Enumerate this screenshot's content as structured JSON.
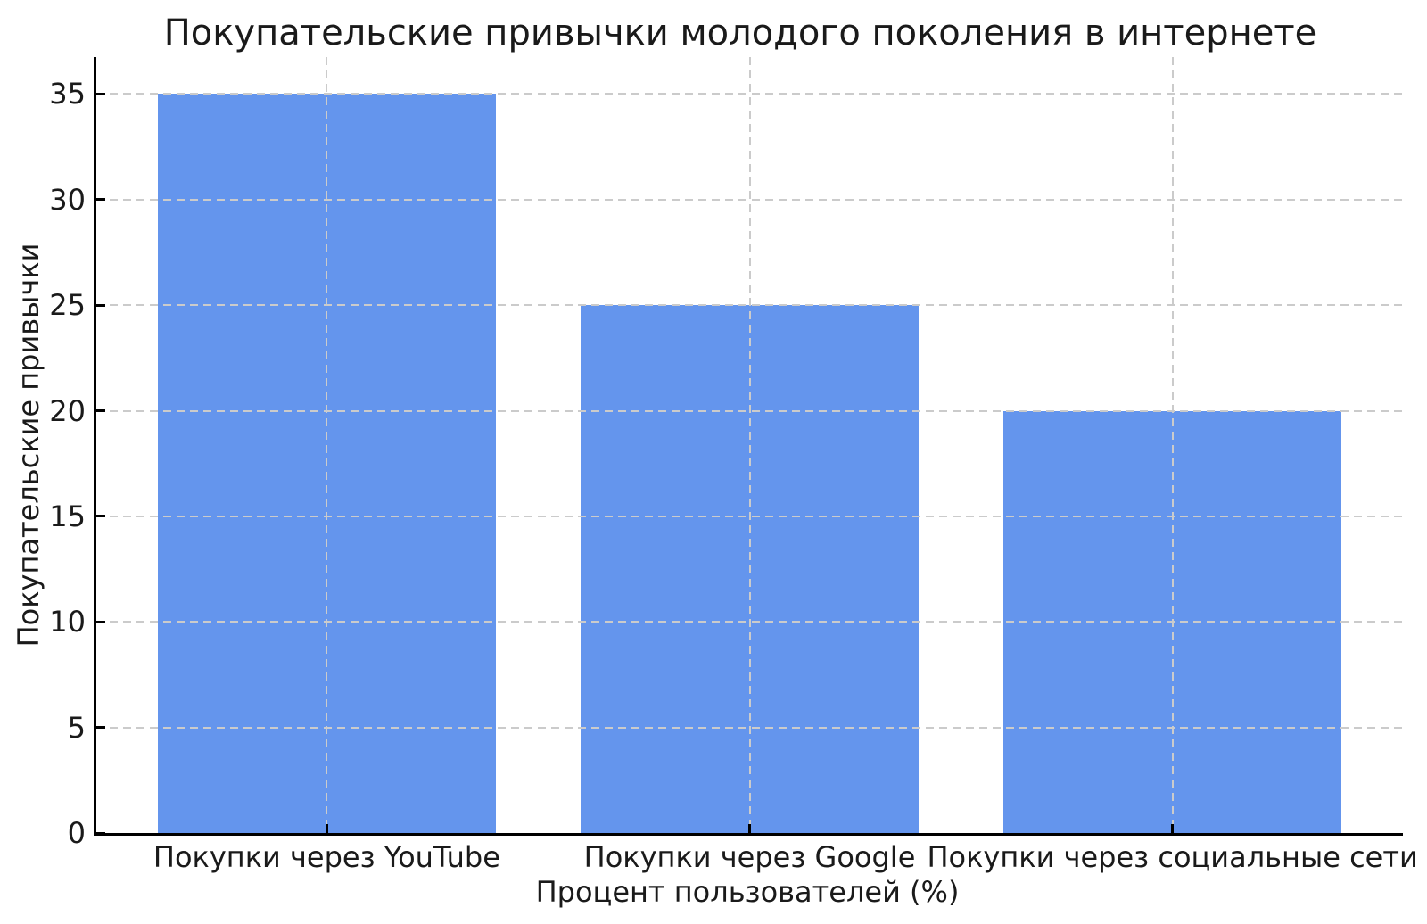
{
  "chart_data": {
    "type": "bar",
    "title": "Покупательские привычки молодого поколения в интернете",
    "xlabel": "Процент пользователей (%)",
    "ylabel": "Покупательские привычки",
    "categories": [
      "Покупки через YouTube",
      "Покупки через Google",
      "Покупки через социальные сети"
    ],
    "values": [
      35,
      25,
      20
    ],
    "yticks": [
      0,
      5,
      10,
      15,
      20,
      25,
      30,
      35
    ],
    "ylim": [
      0,
      36.75
    ],
    "bar_width_fraction": 0.8,
    "grid": true,
    "legend": "none",
    "bar_color": "#6495ED",
    "grid_color": "#cbcbcb",
    "axis_color": "#000000",
    "text_color": "#1a1a1a"
  }
}
